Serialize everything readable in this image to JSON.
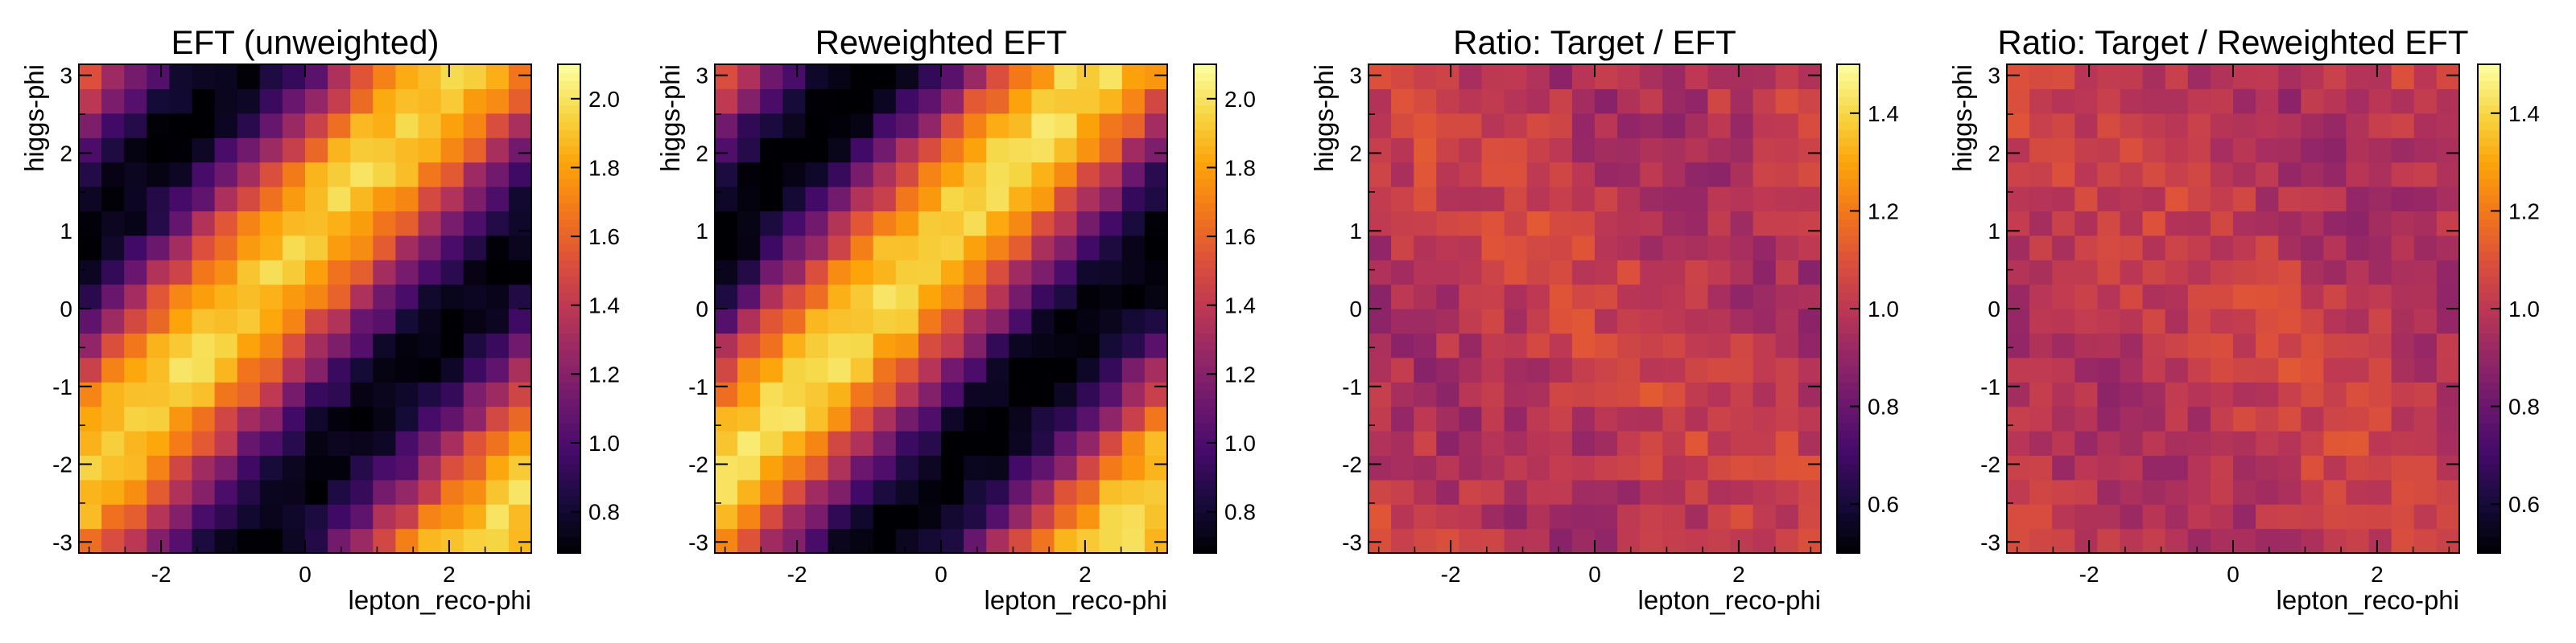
{
  "chart_data": [
    {
      "type": "heatmap",
      "title": "EFT (unweighted)",
      "xlabel": "lepton_reco-phi",
      "ylabel": "higgs-phi",
      "xlim": [
        -3.14159,
        3.14159
      ],
      "ylim": [
        -3.14159,
        3.14159
      ],
      "bins": 20,
      "x_ticks": [
        -2,
        0,
        2
      ],
      "y_ticks": [
        -3,
        -2,
        -1,
        0,
        1,
        2,
        3
      ],
      "colorbar": {
        "min": 0.68,
        "max": 2.1,
        "ticks": [
          0.8,
          1.0,
          1.2,
          1.4,
          1.6,
          1.8,
          2.0
        ]
      },
      "colormap": "inferno",
      "pattern": "diagonal_band",
      "amplitude": 0.62
    },
    {
      "type": "heatmap",
      "title": "Reweighted EFT",
      "xlabel": "lepton_reco-phi",
      "ylabel": "higgs-phi",
      "xlim": [
        -3.14159,
        3.14159
      ],
      "ylim": [
        -3.14159,
        3.14159
      ],
      "bins": 20,
      "x_ticks": [
        -2,
        0,
        2
      ],
      "y_ticks": [
        -3,
        -2,
        -1,
        0,
        1,
        2,
        3
      ],
      "colorbar": {
        "min": 0.68,
        "max": 2.1,
        "ticks": [
          0.8,
          1.0,
          1.2,
          1.4,
          1.6,
          1.8,
          2.0
        ]
      },
      "colormap": "inferno",
      "pattern": "diagonal_band",
      "amplitude": 0.65
    },
    {
      "type": "heatmap",
      "title": "Ratio: Target / EFT",
      "xlabel": "lepton_reco-phi",
      "ylabel": "higgs-phi",
      "xlim": [
        -3.14159,
        3.14159
      ],
      "ylim": [
        -3.14159,
        3.14159
      ],
      "bins": 20,
      "x_ticks": [
        -2,
        0,
        2
      ],
      "y_ticks": [
        -3,
        -2,
        -1,
        0,
        1,
        2,
        3
      ],
      "colorbar": {
        "min": 0.5,
        "max": 1.5,
        "ticks": [
          0.6,
          0.8,
          1.0,
          1.2,
          1.4
        ]
      },
      "colormap": "inferno",
      "pattern": "noise",
      "amplitude": 0.08
    },
    {
      "type": "heatmap",
      "title": "Ratio: Target / Reweighted EFT",
      "xlabel": "lepton_reco-phi",
      "ylabel": "higgs-phi",
      "xlim": [
        -3.14159,
        3.14159
      ],
      "ylim": [
        -3.14159,
        3.14159
      ],
      "bins": 20,
      "x_ticks": [
        -2,
        0,
        2
      ],
      "y_ticks": [
        -3,
        -2,
        -1,
        0,
        1,
        2,
        3
      ],
      "colorbar": {
        "min": 0.5,
        "max": 1.5,
        "ticks": [
          0.6,
          0.8,
          1.0,
          1.2,
          1.4
        ]
      },
      "colormap": "inferno",
      "pattern": "noise",
      "amplitude": 0.07
    }
  ]
}
